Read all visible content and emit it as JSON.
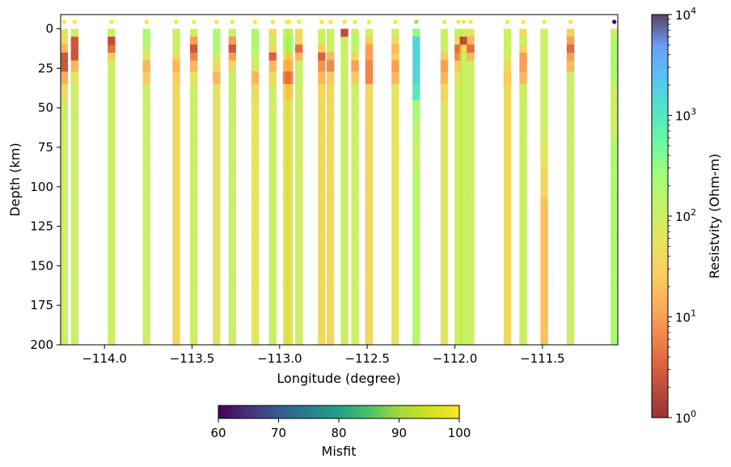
{
  "chart_data": {
    "type": "heatmap",
    "xlabel": "Longitude (degree)",
    "ylabel": "Depth (km)",
    "xlim": [
      -114.25,
      -111.07
    ],
    "ylim": [
      200,
      -9
    ],
    "x_ticks": [
      -114.0,
      -113.5,
      -113.0,
      -112.5,
      -112.0,
      -111.5
    ],
    "x_tick_labels": [
      "−114.0",
      "−113.5",
      "−113.0",
      "−112.5",
      "−112.0",
      "−111.5"
    ],
    "y_ticks": [
      0,
      25,
      50,
      75,
      100,
      125,
      150,
      175,
      200
    ],
    "y_tick_labels": [
      "0",
      "25",
      "50",
      "75",
      "100",
      "125",
      "150",
      "175",
      "200"
    ],
    "layer_depth_edges": [
      0,
      5,
      10,
      15,
      20,
      27,
      35,
      45,
      57,
      70,
      87,
      107,
      132,
      162,
      200
    ],
    "stations": [
      {
        "lon": -114.23,
        "misfit": 100,
        "log_rho": [
          1.8,
          1.6,
          1.2,
          0.4,
          0.4,
          1.1,
          1.6,
          2.0,
          2.0,
          2.0,
          2.0,
          2.0,
          2.0,
          2.0
        ]
      },
      {
        "lon": -114.17,
        "misfit": 100,
        "log_rho": [
          2.0,
          0.4,
          0.4,
          0.4,
          1.2,
          1.8,
          2.0,
          2.0,
          2.0,
          2.0,
          2.0,
          2.0,
          2.0,
          2.0
        ]
      },
      {
        "lon": -113.96,
        "misfit": 100,
        "log_rho": [
          2.0,
          0.3,
          0.6,
          1.4,
          2.0,
          2.0,
          2.0,
          2.0,
          2.0,
          2.0,
          2.0,
          2.0,
          2.0,
          2.0
        ]
      },
      {
        "lon": -113.76,
        "misfit": 100,
        "log_rho": [
          2.3,
          2.3,
          2.0,
          1.8,
          1.2,
          1.4,
          2.0,
          2.0,
          2.0,
          2.0,
          2.0,
          2.0,
          2.0,
          2.0
        ]
      },
      {
        "lon": -113.59,
        "misfit": 100,
        "log_rho": [
          2.0,
          2.0,
          2.0,
          1.6,
          1.2,
          1.4,
          1.6,
          1.6,
          1.6,
          1.6,
          1.6,
          1.6,
          1.6,
          1.6
        ]
      },
      {
        "lon": -113.49,
        "misfit": 100,
        "log_rho": [
          2.0,
          1.0,
          0.4,
          0.8,
          1.2,
          1.8,
          2.0,
          2.0,
          2.0,
          2.0,
          2.0,
          2.0,
          2.0,
          2.0
        ]
      },
      {
        "lon": -113.36,
        "misfit": 100,
        "log_rho": [
          2.3,
          2.3,
          2.3,
          2.0,
          1.6,
          1.2,
          1.8,
          1.8,
          1.8,
          1.8,
          1.8,
          1.8,
          1.8,
          1.8
        ]
      },
      {
        "lon": -113.27,
        "misfit": 100,
        "log_rho": [
          2.0,
          1.0,
          0.4,
          1.0,
          1.6,
          2.0,
          2.0,
          2.0,
          2.0,
          2.0,
          2.0,
          2.0,
          2.0,
          2.0
        ]
      },
      {
        "lon": -113.14,
        "misfit": 100,
        "log_rho": [
          2.3,
          2.3,
          2.3,
          2.0,
          2.0,
          1.2,
          1.6,
          1.8,
          1.8,
          1.8,
          1.8,
          1.8,
          1.8,
          1.8
        ]
      },
      {
        "lon": -113.04,
        "misfit": 100,
        "log_rho": [
          1.6,
          2.0,
          1.6,
          0.5,
          1.2,
          1.6,
          2.0,
          2.0,
          2.0,
          2.0,
          2.0,
          2.0,
          2.0,
          2.0
        ]
      },
      {
        "lon": -112.96,
        "misfit": 100,
        "log_rho": [
          2.0,
          2.3,
          2.0,
          1.8,
          1.2,
          0.8,
          1.6,
          1.8,
          1.8,
          1.8,
          1.8,
          1.8,
          1.8,
          1.8
        ]
      },
      {
        "lon": -112.945,
        "misfit": 100,
        "log_rho": [
          2.0,
          2.3,
          2.3,
          1.4,
          1.2,
          0.8,
          1.4,
          1.8,
          1.8,
          1.8,
          1.8,
          1.8,
          1.8,
          1.8
        ]
      },
      {
        "lon": -112.89,
        "misfit": 100,
        "log_rho": [
          1.6,
          1.6,
          0.6,
          1.2,
          2.0,
          2.0,
          2.0,
          2.0,
          2.0,
          2.0,
          2.0,
          2.0,
          2.0,
          2.0
        ]
      },
      {
        "lon": -112.76,
        "misfit": 100,
        "log_rho": [
          2.0,
          2.0,
          1.4,
          0.5,
          0.9,
          1.2,
          1.6,
          1.6,
          1.6,
          1.6,
          1.6,
          1.6,
          1.6,
          1.6
        ]
      },
      {
        "lon": -112.71,
        "misfit": 100,
        "log_rho": [
          2.0,
          2.0,
          2.0,
          1.2,
          0.8,
          1.4,
          1.6,
          1.6,
          1.6,
          1.6,
          1.6,
          1.6,
          1.6,
          1.6
        ]
      },
      {
        "lon": -112.63,
        "misfit": 100,
        "log_rho": [
          0.3,
          2.0,
          2.0,
          2.0,
          2.0,
          2.0,
          2.0,
          2.0,
          2.0,
          2.0,
          2.0,
          2.0,
          2.0,
          2.0
        ]
      },
      {
        "lon": -112.57,
        "misfit": 100,
        "log_rho": [
          2.0,
          2.3,
          2.0,
          1.6,
          1.0,
          1.4,
          2.0,
          2.0,
          2.0,
          2.0,
          2.0,
          2.0,
          2.0,
          2.0
        ]
      },
      {
        "lon": -112.49,
        "misfit": 100,
        "log_rho": [
          2.0,
          1.4,
          1.0,
          1.0,
          0.8,
          0.8,
          1.6,
          1.6,
          1.6,
          1.6,
          1.6,
          1.6,
          1.6,
          1.6
        ]
      },
      {
        "lon": -112.34,
        "misfit": 100,
        "log_rho": [
          2.0,
          1.6,
          1.2,
          1.4,
          1.0,
          1.2,
          1.8,
          1.8,
          1.8,
          1.8,
          1.8,
          1.8,
          1.8,
          1.8
        ]
      },
      {
        "lon": -112.22,
        "misfit": 91,
        "log_rho": [
          2.5,
          3.2,
          3.2,
          3.2,
          3.2,
          3.2,
          3.0,
          2.4,
          2.2,
          2.0,
          2.2,
          2.2,
          2.2,
          2.2
        ]
      },
      {
        "lon": -112.06,
        "misfit": 100,
        "log_rho": [
          2.0,
          2.0,
          2.0,
          1.4,
          1.0,
          1.2,
          1.6,
          1.8,
          1.8,
          1.8,
          1.8,
          1.8,
          1.8,
          1.8
        ]
      },
      {
        "lon": -111.98,
        "misfit": 100,
        "log_rho": [
          2.0,
          1.6,
          0.6,
          0.8,
          1.4,
          1.8,
          2.0,
          2.0,
          2.0,
          2.0,
          2.0,
          2.0,
          2.0,
          2.0
        ]
      },
      {
        "lon": -111.95,
        "misfit": 100,
        "log_rho": [
          2.0,
          0.3,
          1.6,
          2.0,
          2.0,
          2.0,
          2.0,
          2.0,
          2.0,
          2.0,
          2.0,
          2.0,
          2.0,
          2.0
        ]
      },
      {
        "lon": -111.91,
        "misfit": 100,
        "log_rho": [
          1.8,
          1.2,
          0.6,
          1.2,
          2.0,
          2.0,
          2.0,
          2.0,
          2.0,
          2.0,
          2.0,
          2.0,
          2.0,
          2.0
        ]
      },
      {
        "lon": -111.7,
        "misfit": 100,
        "log_rho": [
          2.0,
          2.0,
          2.0,
          2.0,
          1.6,
          1.4,
          1.6,
          1.6,
          1.6,
          1.6,
          1.6,
          1.6,
          1.6,
          1.6
        ]
      },
      {
        "lon": -111.61,
        "misfit": 100,
        "log_rho": [
          1.6,
          2.0,
          1.6,
          1.0,
          1.0,
          1.2,
          2.0,
          2.0,
          2.0,
          2.0,
          2.0,
          2.0,
          2.0,
          2.0
        ]
      },
      {
        "lon": -111.49,
        "misfit": 100,
        "log_rho": [
          2.0,
          2.0,
          2.0,
          2.0,
          2.0,
          2.0,
          2.0,
          2.0,
          2.0,
          1.8,
          1.6,
          1.3,
          1.3,
          1.3
        ]
      },
      {
        "lon": -111.34,
        "misfit": 100,
        "log_rho": [
          1.4,
          1.0,
          0.6,
          1.0,
          1.2,
          2.0,
          2.0,
          2.0,
          2.0,
          2.0,
          2.0,
          2.0,
          2.0,
          2.0
        ]
      },
      {
        "lon": -111.09,
        "misfit": 60,
        "log_rho": [
          2.0,
          2.3,
          2.3,
          2.3,
          2.3,
          2.3,
          2.0,
          2.0,
          2.0,
          2.3,
          2.3,
          2.3,
          2.3,
          2.3
        ]
      }
    ],
    "colorbar_resistivity": {
      "label": "Resistvity (Ohm-m)",
      "scale": "log",
      "range": [
        1,
        10000
      ],
      "tick_labels": [
        {
          "base": "10",
          "exp": "0"
        },
        {
          "base": "10",
          "exp": "1"
        },
        {
          "base": "10",
          "exp": "2"
        },
        {
          "base": "10",
          "exp": "3"
        },
        {
          "base": "10",
          "exp": "4"
        }
      ]
    },
    "colorbar_misfit": {
      "label": "Misfit",
      "range": [
        60,
        100
      ],
      "ticks": [
        60,
        70,
        80,
        90,
        100
      ],
      "tick_labels": [
        "60",
        "70",
        "80",
        "90",
        "100"
      ]
    }
  }
}
